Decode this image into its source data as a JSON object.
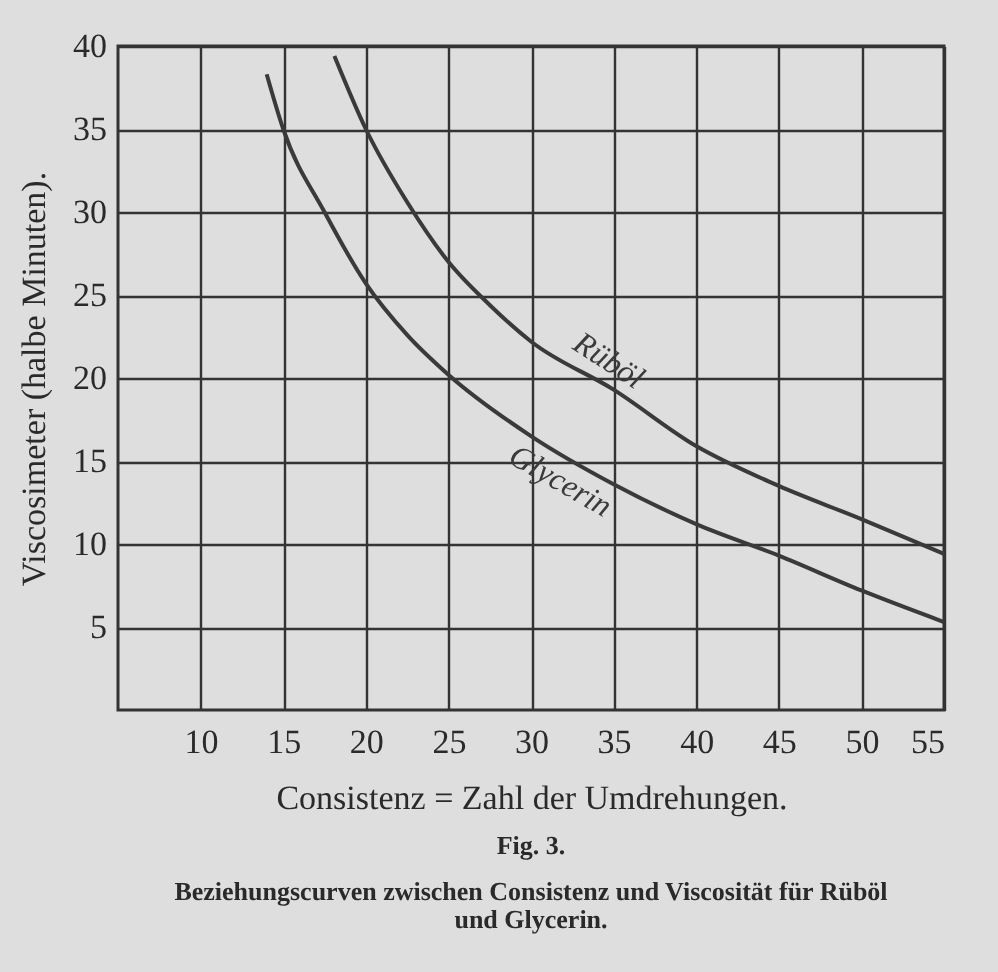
{
  "chart_data": {
    "type": "line",
    "title": "Fig. 3.",
    "subtitle": "Beziehungscurven zwischen Consistenz und Viscosität für Rüböl und Glycerin.",
    "xlabel": "Consistenz = Zahl der Umdrehungen.",
    "ylabel": "Viscosimeter (halbe Minuten).",
    "series": [
      {
        "name": "Rüböl",
        "color": "#3a3a3a",
        "x": [
          18.1,
          20,
          22.5,
          25,
          27.5,
          30,
          35,
          40,
          45,
          50,
          55
        ],
        "values": [
          39.4,
          35,
          30.6,
          27,
          24.4,
          22.2,
          19.3,
          15.9,
          13.5,
          11.5,
          9.4
        ]
      },
      {
        "name": "Glycerin",
        "color": "#3a3a3a",
        "x": [
          14,
          15,
          17.5,
          20,
          22.5,
          25,
          30,
          35,
          40,
          45,
          50,
          55
        ],
        "values": [
          38.3,
          35,
          30,
          25.7,
          22.6,
          20.2,
          16.5,
          13.6,
          11.2,
          9.3,
          7.2,
          5.3
        ]
      }
    ],
    "xlim": [
      5,
      55
    ],
    "xticks": [
      10,
      15,
      20,
      25,
      30,
      35,
      40,
      45,
      50,
      55
    ],
    "ylim": [
      0,
      40
    ],
    "yticks": [
      5,
      10,
      15,
      20,
      25,
      30,
      35,
      40
    ],
    "grid": true,
    "legend": false,
    "line_style": "solid",
    "marker": "none"
  }
}
